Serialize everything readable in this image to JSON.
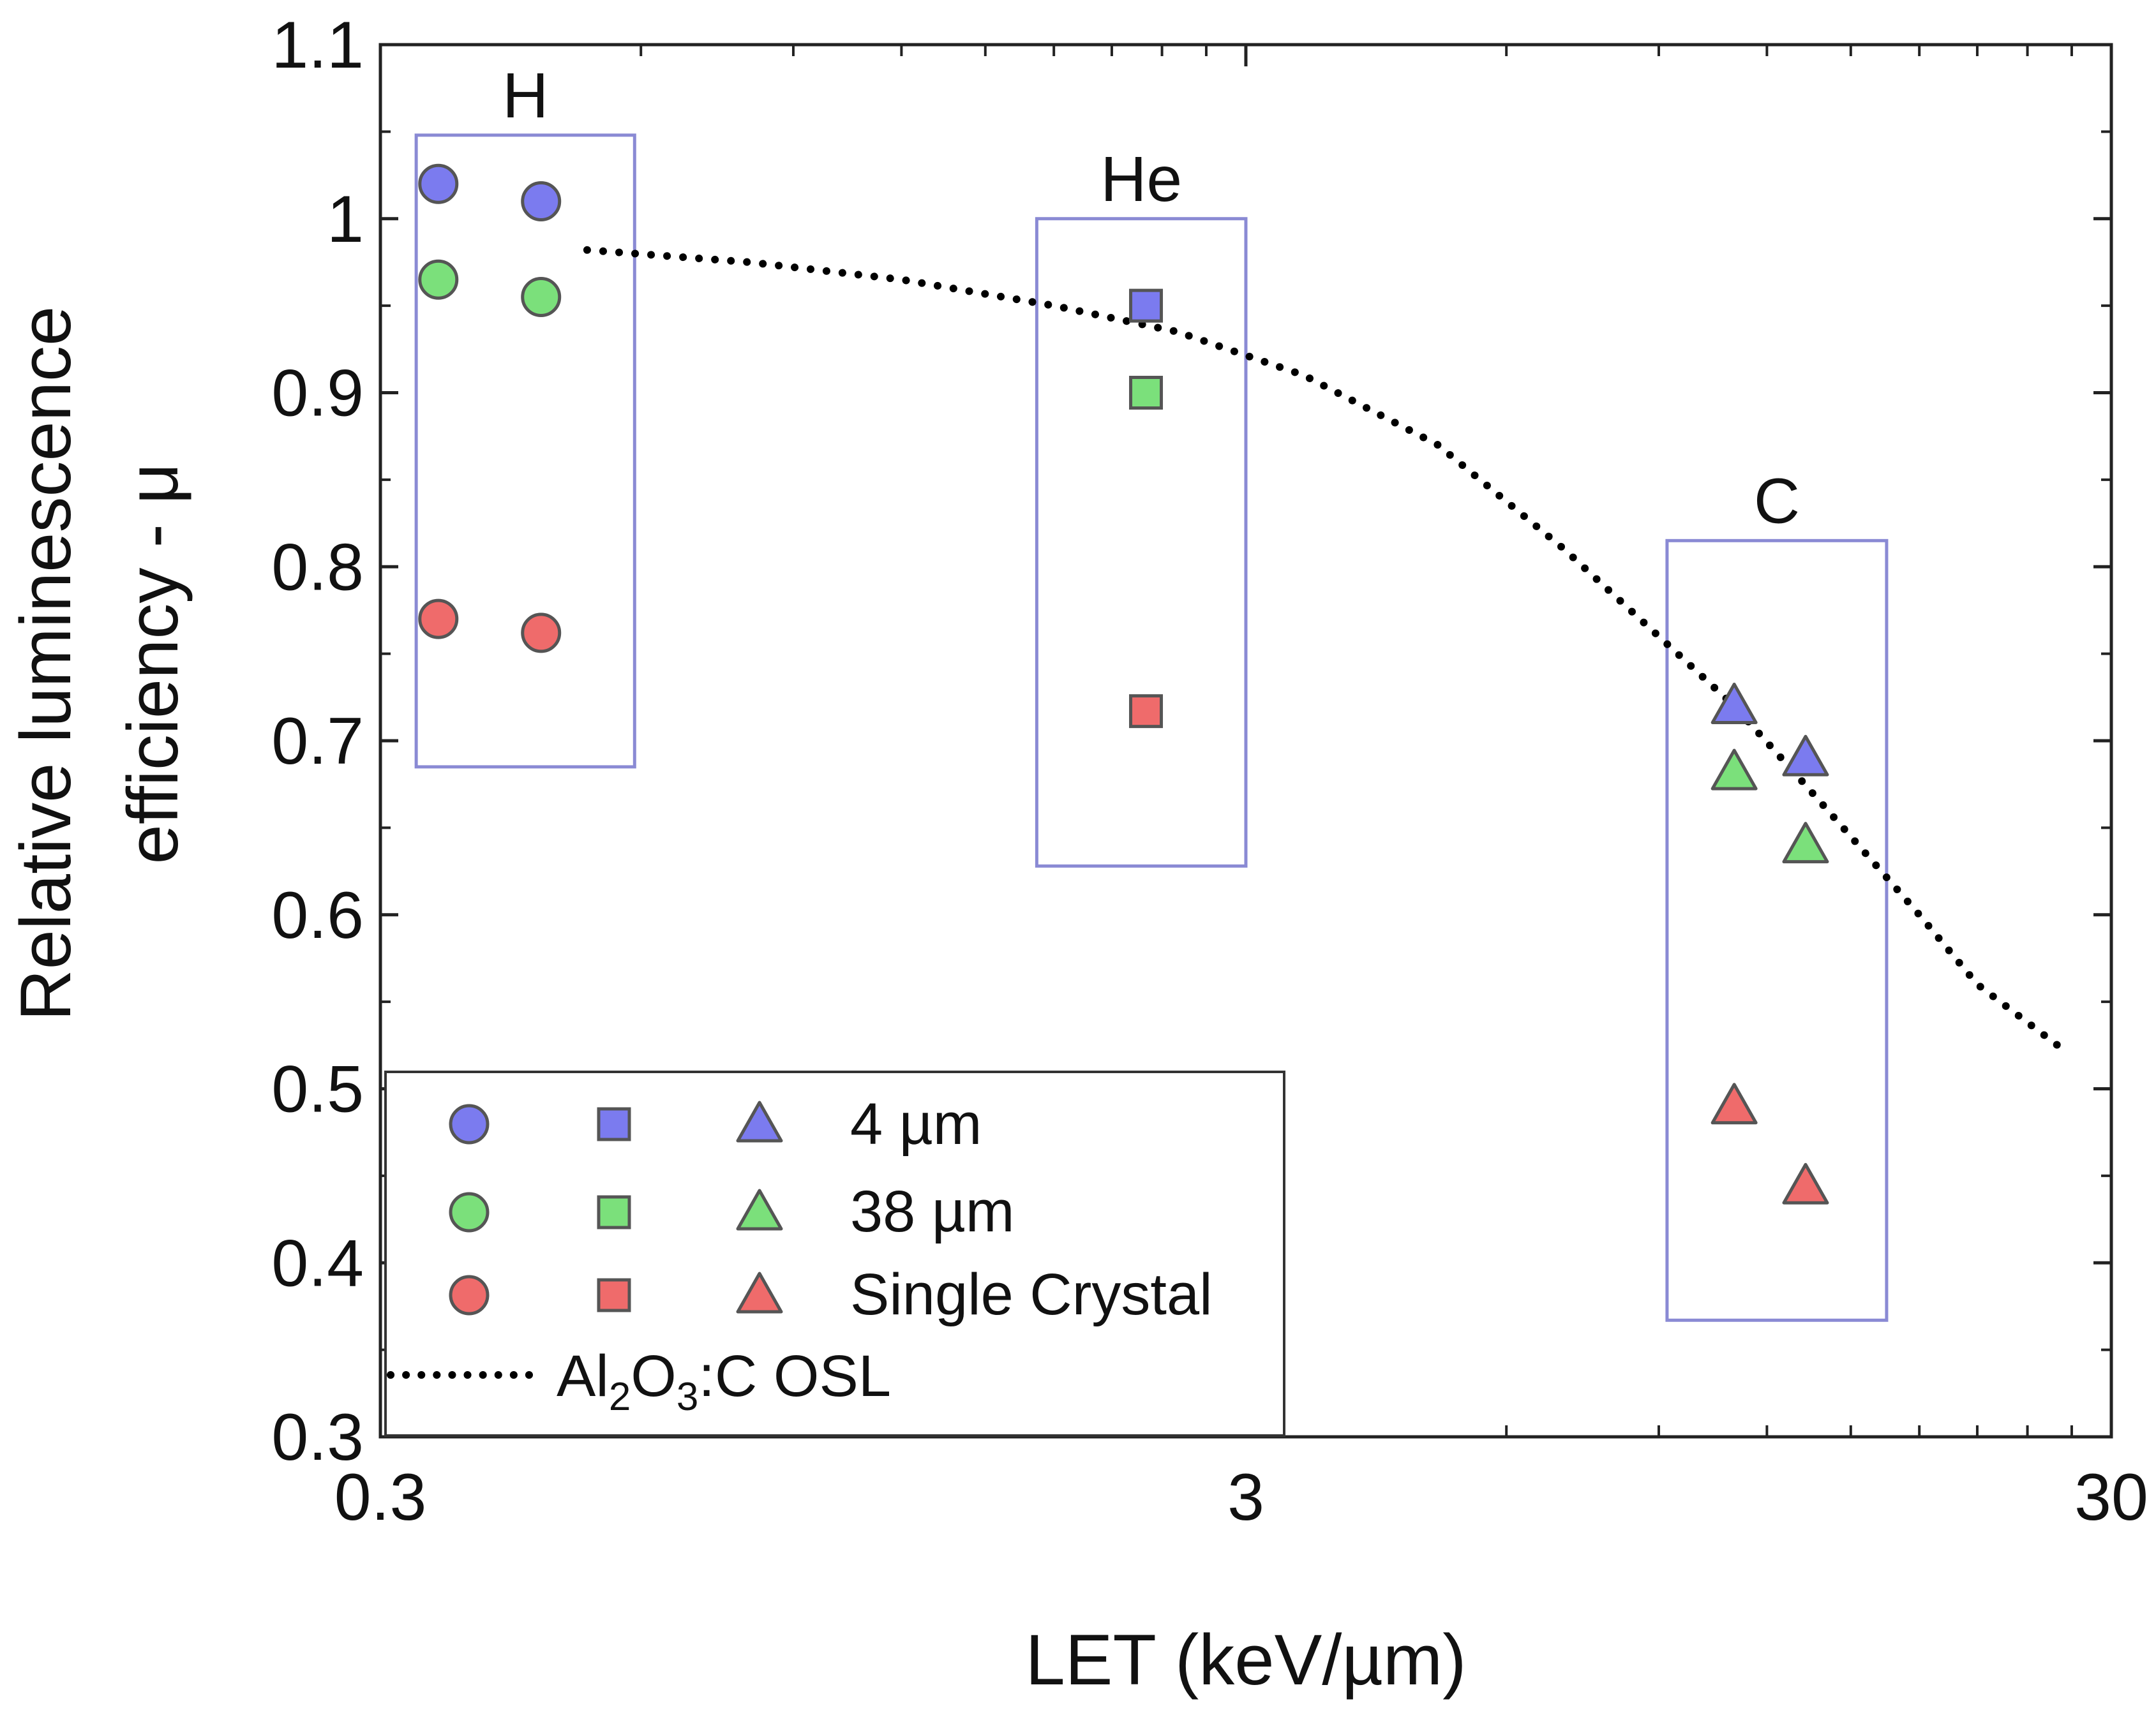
{
  "chart_data": {
    "type": "scatter",
    "xscale": "log",
    "xlim": [
      0.3,
      30
    ],
    "ylim": [
      0.3,
      1.1
    ],
    "xlabel": "LET (keV/µm)",
    "ylabel_lines": [
      "Relative luminescence",
      "efficiency - μ"
    ],
    "xticks": [
      {
        "value": 0.3,
        "label": "0.3"
      },
      {
        "value": 3,
        "label": "3"
      },
      {
        "value": 30,
        "label": "30"
      }
    ],
    "yticks": [
      {
        "value": 0.3,
        "label": "0.3"
      },
      {
        "value": 0.4,
        "label": "0.4"
      },
      {
        "value": 0.5,
        "label": "0.5"
      },
      {
        "value": 0.6,
        "label": "0.6"
      },
      {
        "value": 0.7,
        "label": "0.7"
      },
      {
        "value": 0.8,
        "label": "0.8"
      },
      {
        "value": 0.9,
        "label": "0.9"
      },
      {
        "value": 1,
        "label": "1"
      },
      {
        "value": 1.1,
        "label": "1.1"
      }
    ],
    "series": [
      {
        "name": "H 4 µm",
        "marker": "circle",
        "color": "#7b7bef",
        "x": [
          0.35,
          0.46
        ],
        "y": [
          1.02,
          1.01
        ]
      },
      {
        "name": "H 38 µm",
        "marker": "circle",
        "color": "#7be07b",
        "x": [
          0.35,
          0.46
        ],
        "y": [
          0.965,
          0.955
        ]
      },
      {
        "name": "H Single Crystal",
        "marker": "circle",
        "color": "#ef6b6b",
        "x": [
          0.35,
          0.46
        ],
        "y": [
          0.77,
          0.762
        ]
      },
      {
        "name": "He 4 µm",
        "marker": "square",
        "color": "#7b7bef",
        "x": [
          2.3
        ],
        "y": [
          0.95
        ]
      },
      {
        "name": "He 38 µm",
        "marker": "square",
        "color": "#7be07b",
        "x": [
          2.3
        ],
        "y": [
          0.9
        ]
      },
      {
        "name": "He Single Crystal",
        "marker": "square",
        "color": "#ef6b6b",
        "x": [
          2.3
        ],
        "y": [
          0.717
        ]
      },
      {
        "name": "C 4 µm",
        "marker": "triangle",
        "color": "#7b7bef",
        "x": [
          11.0,
          13.3
        ],
        "y": [
          0.72,
          0.69
        ]
      },
      {
        "name": "C 38 µm",
        "marker": "triangle",
        "color": "#7be07b",
        "x": [
          11.0,
          13.3
        ],
        "y": [
          0.682,
          0.64
        ]
      },
      {
        "name": "C Single Crystal",
        "marker": "triangle",
        "color": "#ef6b6b",
        "x": [
          11.0,
          13.3
        ],
        "y": [
          0.49,
          0.444
        ]
      }
    ],
    "curve": {
      "name": "Al2O3:C OSL",
      "style": "dotted",
      "x": [
        0.52,
        0.8,
        1.2,
        1.8,
        2.5,
        3.5,
        5.0,
        7.0,
        9.0,
        11.0,
        13.0,
        15.0,
        18.0,
        21.0,
        26.0
      ],
      "y": [
        0.982,
        0.975,
        0.965,
        0.95,
        0.935,
        0.91,
        0.87,
        0.81,
        0.76,
        0.72,
        0.68,
        0.645,
        0.6,
        0.56,
        0.525
      ]
    },
    "group_boxes": [
      {
        "label": "H",
        "x_range": [
          0.33,
          0.59
        ],
        "y_range": [
          0.685,
          1.048
        ]
      },
      {
        "label": "He",
        "x_range": [
          1.72,
          3.0
        ],
        "y_range": [
          0.628,
          1.0
        ]
      },
      {
        "label": "C",
        "x_range": [
          9.2,
          16.5
        ],
        "y_range": [
          0.367,
          0.815
        ]
      }
    ],
    "legend": {
      "placement": "bottom-left",
      "rows": [
        {
          "label": "4 µm",
          "color": "#7b7bef"
        },
        {
          "label": "38 µm",
          "color": "#7be07b"
        },
        {
          "label": "Single Crystal",
          "color": "#ef6b6b"
        }
      ],
      "curve_label_parts": [
        "Al",
        "2",
        "O",
        "3",
        ":C OSL"
      ]
    }
  }
}
